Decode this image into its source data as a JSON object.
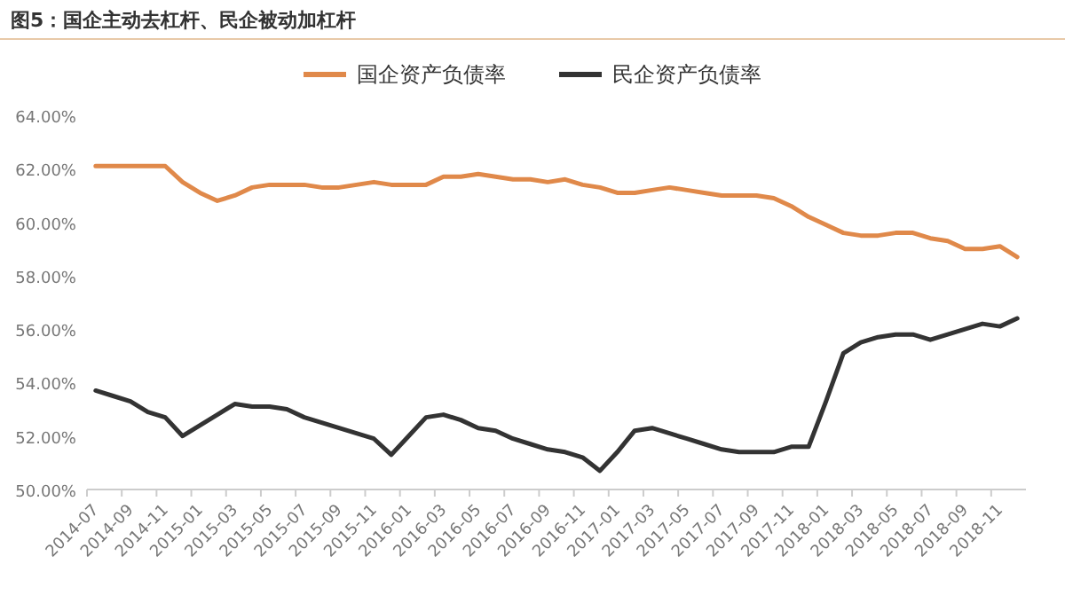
{
  "chart_data": {
    "type": "line",
    "title": "图5：国企主动去杠杆、民企被动加杠杆",
    "categories": [
      "2014-07",
      null,
      "2014-09",
      null,
      "2014-11",
      null,
      "2015-01",
      null,
      "2015-03",
      null,
      "2015-05",
      null,
      "2015-07",
      null,
      "2015-09",
      null,
      "2015-11",
      null,
      "2016-01",
      null,
      "2016-03",
      null,
      "2016-05",
      null,
      "2016-07",
      null,
      "2016-09",
      null,
      "2016-11",
      null,
      "2017-01",
      null,
      "2017-03",
      null,
      "2017-05",
      null,
      "2017-07",
      null,
      "2017-09",
      null,
      "2017-11",
      null,
      "2018-01",
      null,
      "2018-03",
      null,
      "2018-05",
      null,
      "2018-07",
      null,
      "2018-09",
      null,
      "2018-11",
      null
    ],
    "series": [
      {
        "name": "国企资产负债率",
        "color": "#e0894a",
        "values": [
          62.1,
          62.1,
          62.1,
          62.1,
          62.1,
          61.5,
          61.1,
          60.8,
          61.0,
          61.3,
          61.4,
          61.4,
          61.4,
          61.3,
          61.3,
          61.4,
          61.5,
          61.4,
          61.4,
          61.4,
          61.7,
          61.7,
          61.8,
          61.7,
          61.6,
          61.6,
          61.5,
          61.6,
          61.4,
          61.3,
          61.1,
          61.1,
          61.2,
          61.3,
          61.2,
          61.1,
          61.0,
          61.0,
          61.0,
          60.9,
          60.6,
          60.2,
          59.9,
          59.6,
          59.5,
          59.5,
          59.6,
          59.6,
          59.4,
          59.3,
          59.0,
          59.0,
          59.1,
          58.7
        ]
      },
      {
        "name": "民企资产负债率",
        "color": "#333333",
        "values": [
          53.7,
          53.5,
          53.3,
          52.9,
          52.7,
          52.0,
          52.4,
          52.8,
          53.2,
          53.1,
          53.1,
          53.0,
          52.7,
          52.5,
          52.3,
          52.1,
          51.9,
          51.3,
          52.0,
          52.7,
          52.8,
          52.6,
          52.3,
          52.2,
          51.9,
          51.7,
          51.5,
          51.4,
          51.2,
          50.7,
          51.4,
          52.2,
          52.3,
          52.1,
          51.9,
          51.7,
          51.5,
          51.4,
          51.4,
          51.4,
          51.6,
          51.6,
          53.3,
          55.1,
          55.5,
          55.7,
          55.8,
          55.8,
          55.6,
          55.8,
          56.0,
          56.2,
          56.1,
          56.4
        ]
      }
    ],
    "ylim": [
      50,
      64
    ],
    "yticks": [
      {
        "value": 50,
        "label": "50.00%"
      },
      {
        "value": 52,
        "label": "52.00%"
      },
      {
        "value": 54,
        "label": "54.00%"
      },
      {
        "value": 56,
        "label": "56.00%"
      },
      {
        "value": 58,
        "label": "58.00%"
      },
      {
        "value": 60,
        "label": "60.00%"
      },
      {
        "value": 62,
        "label": "62.00%"
      },
      {
        "value": 64,
        "label": "64.00%"
      }
    ],
    "legend": "top",
    "grid": false,
    "marker": "none",
    "line_style": "solid"
  }
}
